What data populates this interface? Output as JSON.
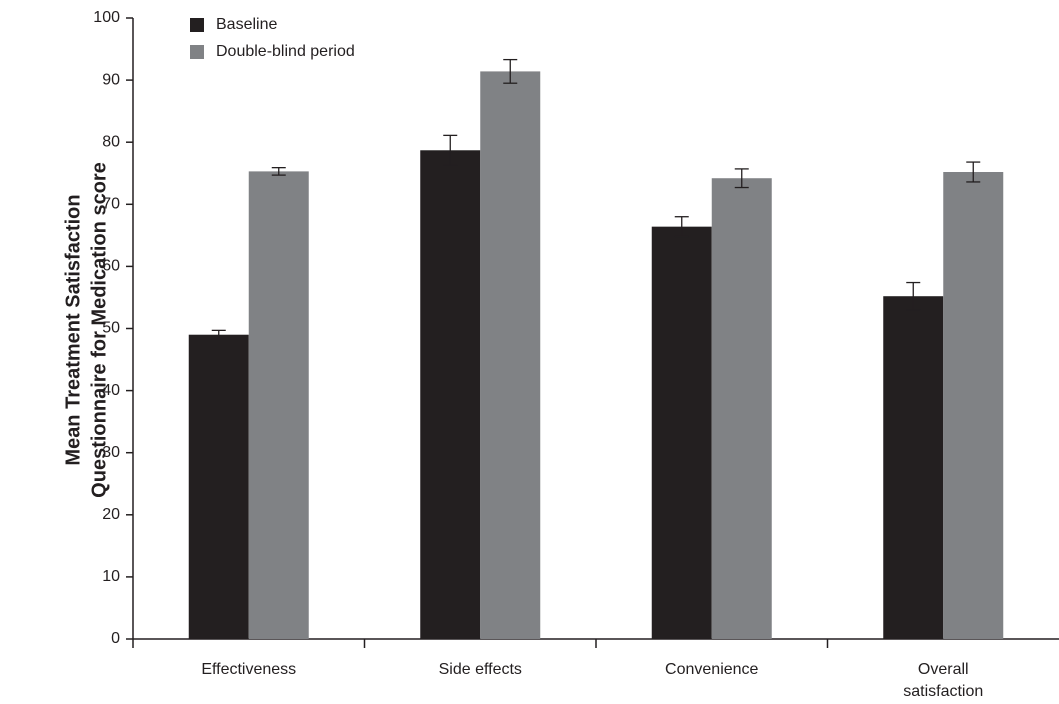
{
  "chart_data": {
    "type": "bar",
    "y_label": [
      "Mean Treatment Satisfaction",
      "Questionnaire for Medication score"
    ],
    "categories": [
      "Effectiveness",
      "Side effects",
      "Convenience",
      "Overall satisfaction"
    ],
    "series": [
      {
        "name": "Baseline",
        "color": "#231f20",
        "values": [
          49,
          78.7,
          66.4,
          55.2
        ],
        "errors": [
          0.7,
          2.4,
          1.6,
          2.2
        ]
      },
      {
        "name": "Double-blind period",
        "color": "#808285",
        "values": [
          75.3,
          91.4,
          74.2,
          75.2
        ],
        "errors": [
          0.6,
          1.9,
          1.5,
          1.6
        ]
      }
    ],
    "ylim": [
      0,
      100
    ],
    "yticks": [
      0,
      10,
      20,
      30,
      40,
      50,
      60,
      70,
      80,
      90,
      100
    ],
    "grid": false
  }
}
